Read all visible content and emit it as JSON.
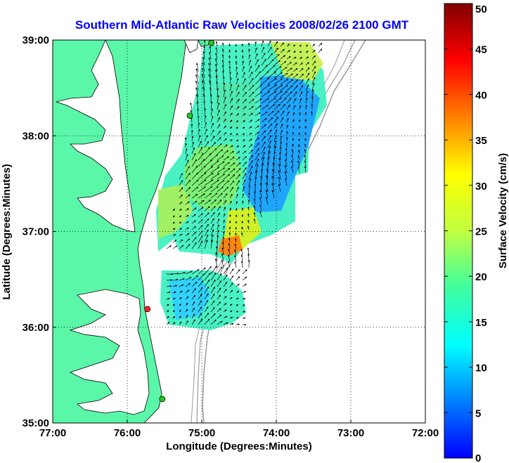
{
  "title": "Southern Mid-Atlantic Raw Velocities 2008/02/26 2100 GMT",
  "map": {
    "xlabel": "Longitude (Degrees:Minutes)",
    "ylabel": "Latitude (Degrees:Minutes)",
    "lon_range": [
      -77,
      -72
    ],
    "lat_range": [
      35,
      39
    ],
    "lon_ticks": [
      {
        "value": -77,
        "label": "77:00"
      },
      {
        "value": -76,
        "label": "76:00"
      },
      {
        "value": -75,
        "label": "75:00"
      },
      {
        "value": -74,
        "label": "74:00"
      },
      {
        "value": -73,
        "label": "73:00"
      },
      {
        "value": -72,
        "label": "72:00"
      }
    ],
    "lat_ticks": [
      {
        "value": 39,
        "label": "39:00"
      },
      {
        "value": 38,
        "label": "38:00"
      },
      {
        "value": 37,
        "label": "37:00"
      },
      {
        "value": 36,
        "label": "36:00"
      },
      {
        "value": 35,
        "label": "35:00"
      }
    ],
    "grid": "dotted",
    "land_color": "#5af7a9",
    "water_color": "#ffffff",
    "stations": [
      {
        "lon": -74.87,
        "lat": 38.97,
        "color": "#22cc22"
      },
      {
        "lon": -75.16,
        "lat": 38.21,
        "color": "#22cc22"
      },
      {
        "lon": -75.73,
        "lat": 36.19,
        "color": "#ff2222"
      },
      {
        "lon": -75.53,
        "lat": 35.25,
        "color": "#22cc22"
      }
    ]
  },
  "colorbar": {
    "label": "Surface Velocity (cm/s)",
    "range": [
      0,
      50
    ],
    "ticks": [
      {
        "value": 50,
        "label": "50"
      },
      {
        "value": 45,
        "label": "45"
      },
      {
        "value": 40,
        "label": "40"
      },
      {
        "value": 35,
        "label": "35"
      },
      {
        "value": 30,
        "label": "30"
      },
      {
        "value": 25,
        "label": "25"
      },
      {
        "value": 20,
        "label": "20"
      },
      {
        "value": 15,
        "label": "15"
      },
      {
        "value": 10,
        "label": "10"
      },
      {
        "value": 5,
        "label": "5"
      },
      {
        "value": 0,
        "label": "0"
      }
    ]
  }
}
